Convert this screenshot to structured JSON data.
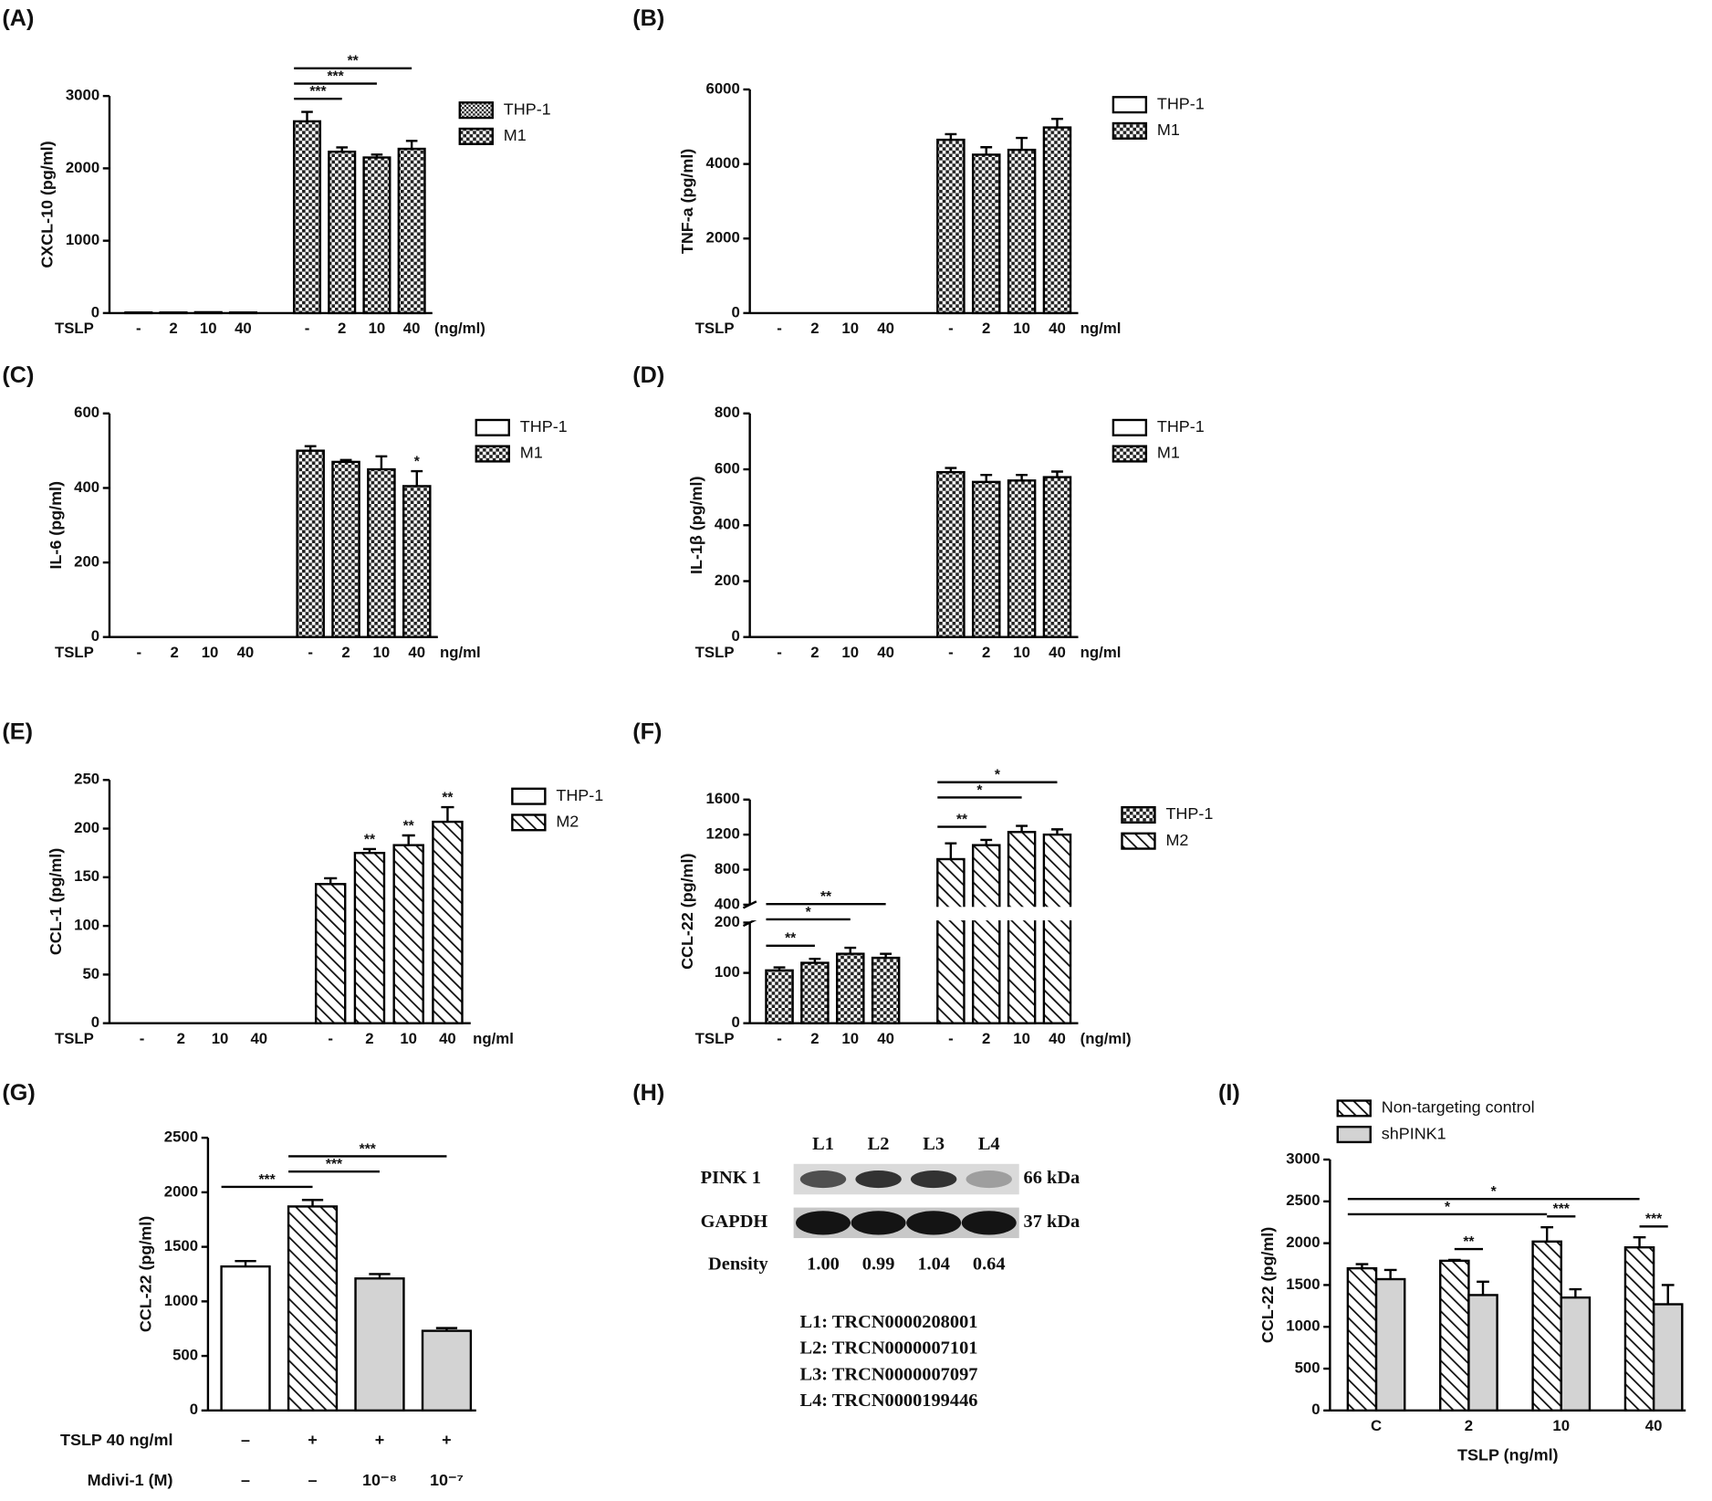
{
  "chart_data": [
    {
      "type": "bar",
      "panel": "(A)",
      "y_label": "CXCL-10 (pg/ml)",
      "x_row_label": "TSLP",
      "x_unit": "(ng/ml)",
      "categories": [
        "-",
        "2",
        "10",
        "40",
        "-",
        "2",
        "10",
        "40"
      ],
      "ylim": [
        0,
        3000
      ],
      "yticks": [
        0,
        1000,
        2000,
        3000
      ],
      "series": [
        {
          "name": "THP-1",
          "pattern": "checker-fine",
          "values": [
            8,
            8,
            12,
            8,
            null,
            null,
            null,
            null
          ]
        },
        {
          "name": "M1",
          "pattern": "checker",
          "values": [
            null,
            null,
            null,
            null,
            2650,
            2230,
            2150,
            2270
          ],
          "errors": [
            null,
            null,
            null,
            null,
            130,
            60,
            40,
            110
          ]
        }
      ],
      "annotations": [
        {
          "label": "***",
          "between": [
            4,
            5
          ]
        },
        {
          "label": "***",
          "between": [
            4,
            6
          ]
        },
        {
          "label": "**",
          "between": [
            4,
            7
          ]
        }
      ]
    },
    {
      "type": "bar",
      "panel": "(B)",
      "y_label": "TNF-a (pg/ml)",
      "x_row_label": "TSLP",
      "x_unit": "ng/ml",
      "categories": [
        "-",
        "2",
        "10",
        "40",
        "-",
        "2",
        "10",
        "40"
      ],
      "ylim": [
        0,
        6000
      ],
      "yticks": [
        0,
        2000,
        4000,
        6000
      ],
      "series": [
        {
          "name": "THP-1",
          "pattern": "open",
          "values": [
            0,
            0,
            0,
            0,
            null,
            null,
            null,
            null
          ]
        },
        {
          "name": "M1",
          "pattern": "checker",
          "values": [
            null,
            null,
            null,
            null,
            4650,
            4250,
            4380,
            4980
          ],
          "errors": [
            null,
            null,
            null,
            null,
            150,
            200,
            320,
            230
          ]
        }
      ]
    },
    {
      "type": "bar",
      "panel": "(C)",
      "y_label": "IL-6 (pg/ml)",
      "x_row_label": "TSLP",
      "x_unit": "ng/ml",
      "categories": [
        "-",
        "2",
        "10",
        "40",
        "-",
        "2",
        "10",
        "40"
      ],
      "ylim": [
        0,
        600
      ],
      "yticks": [
        0,
        200,
        400,
        600
      ],
      "series": [
        {
          "name": "THP-1",
          "pattern": "open",
          "values": [
            0,
            0,
            0,
            0,
            null,
            null,
            null,
            null
          ]
        },
        {
          "name": "M1",
          "pattern": "checker",
          "values": [
            null,
            null,
            null,
            null,
            500,
            470,
            450,
            405
          ],
          "errors": [
            null,
            null,
            null,
            null,
            12,
            5,
            35,
            40
          ]
        }
      ],
      "annotations": [
        {
          "label": "*",
          "over": 7
        }
      ]
    },
    {
      "type": "bar",
      "panel": "(D)",
      "y_label": "IL-1β (pg/ml)",
      "x_row_label": "TSLP",
      "x_unit": "ng/ml",
      "categories": [
        "-",
        "2",
        "10",
        "40",
        "-",
        "2",
        "10",
        "40"
      ],
      "ylim": [
        0,
        800
      ],
      "yticks": [
        0,
        200,
        400,
        600,
        800
      ],
      "series": [
        {
          "name": "THP-1",
          "pattern": "open",
          "values": [
            0,
            0,
            0,
            0,
            null,
            null,
            null,
            null
          ]
        },
        {
          "name": "M1",
          "pattern": "checker",
          "values": [
            null,
            null,
            null,
            null,
            590,
            555,
            560,
            572
          ],
          "errors": [
            null,
            null,
            null,
            null,
            15,
            25,
            20,
            20
          ]
        }
      ]
    },
    {
      "type": "bar",
      "panel": "(E)",
      "y_label": "CCL-1 (pg/ml)",
      "x_row_label": "TSLP",
      "x_unit": "ng/ml",
      "categories": [
        "-",
        "2",
        "10",
        "40",
        "-",
        "2",
        "10",
        "40"
      ],
      "ylim": [
        0,
        250
      ],
      "yticks": [
        0,
        50,
        100,
        150,
        200,
        250
      ],
      "series": [
        {
          "name": "THP-1",
          "pattern": "open",
          "values": [
            0,
            0,
            0,
            0,
            null,
            null,
            null,
            null
          ]
        },
        {
          "name": "M2",
          "pattern": "hatch",
          "values": [
            null,
            null,
            null,
            null,
            143,
            175,
            183,
            207
          ],
          "errors": [
            null,
            null,
            null,
            null,
            6,
            4,
            10,
            15
          ]
        }
      ],
      "annotations": [
        {
          "label": "**",
          "over": 5
        },
        {
          "label": "**",
          "over": 6
        },
        {
          "label": "**",
          "over": 7
        }
      ]
    },
    {
      "type": "bar",
      "panel": "(F)",
      "y_label": "CCL-22 (pg/ml)",
      "x_row_label": "TSLP",
      "x_unit": "(ng/ml)",
      "categories": [
        "-",
        "2",
        "10",
        "40",
        "-",
        "2",
        "10",
        "40"
      ],
      "ylim": [
        0,
        1600
      ],
      "ybreak": [
        200,
        400
      ],
      "yticks": [
        0,
        100,
        200,
        400,
        800,
        1200,
        1600
      ],
      "series": [
        {
          "name": "THP-1",
          "pattern": "checker",
          "values": [
            105,
            120,
            138,
            130,
            null,
            null,
            null,
            null
          ],
          "errors": [
            6,
            8,
            12,
            8,
            null,
            null,
            null,
            null
          ]
        },
        {
          "name": "M2",
          "pattern": "hatch",
          "values": [
            null,
            null,
            null,
            null,
            920,
            1080,
            1230,
            1200
          ],
          "errors": [
            null,
            null,
            null,
            null,
            180,
            60,
            70,
            60
          ]
        }
      ],
      "annotations": [
        {
          "label": "**",
          "between": [
            0,
            1
          ]
        },
        {
          "label": "*",
          "between": [
            0,
            2
          ]
        },
        {
          "label": "**",
          "between": [
            0,
            3
          ]
        },
        {
          "label": "**",
          "between": [
            4,
            5
          ]
        },
        {
          "label": "*",
          "between": [
            4,
            6
          ]
        },
        {
          "label": "*",
          "between": [
            4,
            7
          ]
        }
      ]
    },
    {
      "type": "bar",
      "panel": "(G)",
      "y_label": "CCL-22 (pg/ml)",
      "ylim": [
        0,
        2500
      ],
      "yticks": [
        0,
        500,
        1000,
        1500,
        2000,
        2500
      ],
      "values": [
        1320,
        1870,
        1210,
        730
      ],
      "errors": [
        50,
        60,
        40,
        25
      ],
      "patterns": [
        "open",
        "hatch",
        "gray",
        "gray"
      ],
      "rows": [
        {
          "label": "TSLP 40 ng/ml",
          "values": [
            "–",
            "+",
            "+",
            "+"
          ]
        },
        {
          "label": "Mdivi-1 (M)",
          "values": [
            "–",
            "–",
            "10⁻⁸",
            "10⁻⁷"
          ]
        }
      ],
      "annotations": [
        {
          "label": "***",
          "between": [
            0,
            1
          ]
        },
        {
          "label": "***",
          "between": [
            1,
            2
          ]
        },
        {
          "label": "***",
          "between": [
            1,
            3
          ]
        }
      ]
    },
    {
      "type": "grouped_bar",
      "panel": "(I)",
      "y_label": "CCL-22 (pg/ml)",
      "x_label": "TSLP (ng/ml)",
      "categories": [
        "C",
        "2",
        "10",
        "40"
      ],
      "ylim": [
        0,
        3000
      ],
      "yticks": [
        0,
        500,
        1000,
        1500,
        2000,
        2500,
        3000
      ],
      "series": [
        {
          "name": "Non-targeting control",
          "pattern": "hatch",
          "values": [
            1700,
            1790,
            2020,
            1950
          ],
          "errors": [
            50,
            10,
            170,
            120
          ]
        },
        {
          "name": "shPINK1",
          "pattern": "gray",
          "values": [
            1570,
            1380,
            1350,
            1270
          ],
          "errors": [
            110,
            160,
            100,
            230
          ]
        }
      ],
      "annotations": [
        {
          "label": "**",
          "within": 1
        },
        {
          "label": "***",
          "within": 2
        },
        {
          "label": "***",
          "within": 3
        },
        {
          "label": "*",
          "between": [
            0,
            2
          ]
        },
        {
          "label": "*",
          "between": [
            0,
            3
          ]
        }
      ]
    }
  ],
  "blot": {
    "panel": "(H)",
    "lanes": [
      "L1",
      "L2",
      "L3",
      "L4"
    ],
    "rows": [
      {
        "label": "PINK 1",
        "size": "66 kDa"
      },
      {
        "label": "GAPDH",
        "size": "37 kDa"
      }
    ],
    "density_label": "Density",
    "density": [
      "1.00",
      "0.99",
      "1.04",
      "0.64"
    ],
    "key": [
      "L1: TRCN0000208001",
      "L2: TRCN0000007101",
      "L3: TRCN0000007097",
      "L4: TRCN0000199446"
    ]
  }
}
